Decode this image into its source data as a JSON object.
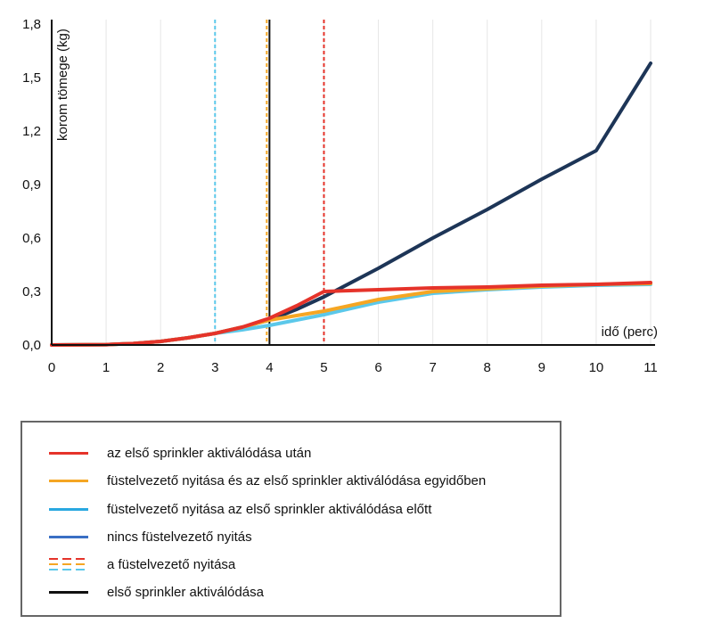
{
  "chart_data": {
    "type": "line",
    "ylabel": "korom tömege (kg)",
    "xlabel": "idő (perc)",
    "xlim": [
      0,
      11
    ],
    "ylim": [
      0,
      1.8
    ],
    "x_ticks": [
      "0",
      "1",
      "2",
      "3",
      "4",
      "5",
      "6",
      "7",
      "8",
      "9",
      "10",
      "11"
    ],
    "y_ticks": [
      "0,0",
      "0,3",
      "0,6",
      "0,9",
      "1,2",
      "1,5",
      "1,8"
    ],
    "grid": "vertical",
    "series": [
      {
        "name": "nincs füstelvezető nyitás",
        "color": "#1d3557",
        "x": [
          0,
          1,
          1.5,
          2,
          2.5,
          3,
          3.5,
          4,
          4.5,
          5,
          6,
          7,
          8,
          9,
          10,
          11
        ],
        "y": [
          0,
          0.002,
          0.008,
          0.02,
          0.04,
          0.065,
          0.1,
          0.14,
          0.2,
          0.27,
          0.43,
          0.6,
          0.76,
          0.93,
          1.09,
          1.58
        ]
      },
      {
        "name": "füstelvezető nyitása az első sprinkler aktiválódása előtt",
        "color": "#5bc8ea",
        "x": [
          0,
          1,
          1.5,
          2,
          2.5,
          3,
          3.5,
          4,
          4.5,
          5,
          6,
          7,
          8,
          9,
          10,
          11
        ],
        "y": [
          0,
          0.002,
          0.008,
          0.02,
          0.04,
          0.065,
          0.085,
          0.11,
          0.14,
          0.17,
          0.24,
          0.29,
          0.31,
          0.325,
          0.335,
          0.34
        ]
      },
      {
        "name": "füstelvezető nyitása és az első sprinkler aktiválódása egyidőben",
        "color": "#f5a623",
        "x": [
          0,
          1,
          1.5,
          2,
          2.5,
          3,
          3.5,
          4,
          4.5,
          5,
          6,
          7,
          8,
          9,
          10,
          11
        ],
        "y": [
          0,
          0.002,
          0.008,
          0.02,
          0.04,
          0.065,
          0.1,
          0.14,
          0.165,
          0.19,
          0.255,
          0.3,
          0.315,
          0.33,
          0.34,
          0.345
        ]
      },
      {
        "name": "az első sprinkler aktiválódása után",
        "color": "#e5332a",
        "x": [
          0,
          1,
          1.5,
          2,
          2.5,
          3,
          3.5,
          4,
          4.5,
          5,
          6,
          7,
          8,
          9,
          10,
          11
        ],
        "y": [
          0,
          0.002,
          0.008,
          0.02,
          0.04,
          0.065,
          0.1,
          0.15,
          0.22,
          0.3,
          0.31,
          0.32,
          0.325,
          0.335,
          0.34,
          0.35
        ]
      }
    ],
    "vertical_markers": [
      {
        "x": 3,
        "style": "dashed",
        "color": "#5bc8ea"
      },
      {
        "x": 3.95,
        "style": "dashed",
        "color": "#f5a623"
      },
      {
        "x": 4,
        "style": "solid",
        "color": "#111111"
      },
      {
        "x": 5,
        "style": "dashed",
        "color": "#e5332a"
      }
    ]
  },
  "legend": {
    "items": [
      {
        "label": "az első sprinkler aktiválódása után",
        "kind": "line",
        "colors": [
          "#e5332a"
        ]
      },
      {
        "label": "füstelvezető nyitása és az első sprinkler aktiválódása egyidőben",
        "kind": "line",
        "colors": [
          "#f5a623"
        ]
      },
      {
        "label": "füstelvezető nyitása az első sprinkler aktiválódása előtt",
        "kind": "line",
        "colors": [
          "#29a8e0"
        ]
      },
      {
        "label": "nincs füstelvezető nyitás",
        "kind": "line",
        "colors": [
          "#3a6fc4"
        ]
      },
      {
        "label": "a füstelvezető nyitása",
        "kind": "dashed",
        "colors": [
          "#e5332a",
          "#f5a623",
          "#5bc8ea"
        ]
      },
      {
        "label": "első sprinkler aktiválódása",
        "kind": "line",
        "colors": [
          "#111111"
        ]
      }
    ]
  }
}
